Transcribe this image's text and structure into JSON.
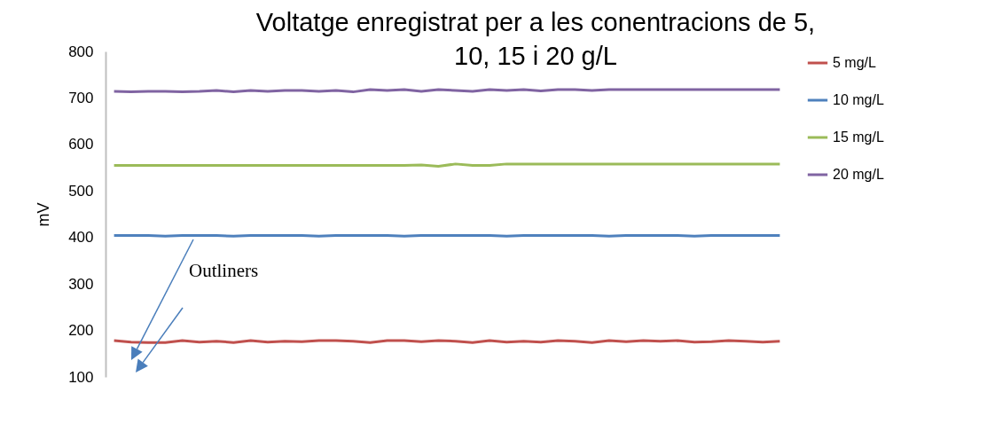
{
  "chart_data": {
    "type": "line",
    "title": "Voltatge enregistrat per a les conentracions de 5, 10, 15 i 20   g/L",
    "ylabel": "mV",
    "categories": [
      null,
      null,
      null,
      null,
      null,
      null,
      null,
      null,
      null,
      null,
      null,
      null,
      null,
      null,
      null,
      null,
      null,
      null,
      null,
      null,
      null,
      null,
      null,
      null,
      null,
      null,
      null,
      null,
      null,
      null,
      null,
      null,
      null,
      null,
      null,
      null,
      null,
      null,
      null,
      null
    ],
    "series": [
      {
        "name": "5 mg/L",
        "color": "#c0504d",
        "values": [
          178,
          175,
          174,
          174,
          178,
          175,
          177,
          174,
          178,
          175,
          177,
          176,
          178,
          178,
          177,
          174,
          178,
          178,
          176,
          178,
          177,
          174,
          178,
          175,
          177,
          175,
          178,
          177,
          174,
          178,
          176,
          178,
          177,
          178,
          175,
          176,
          178,
          177,
          175,
          177
        ]
      },
      {
        "name": "10 mg/L",
        "color": "#4f81bd",
        "values": [
          404,
          404,
          404,
          403,
          404,
          404,
          404,
          403,
          404,
          404,
          404,
          404,
          403,
          404,
          404,
          404,
          404,
          403,
          404,
          404,
          404,
          404,
          404,
          403,
          404,
          404,
          404,
          404,
          404,
          403,
          404,
          404,
          404,
          404,
          403,
          404,
          404,
          404,
          404,
          404
        ]
      },
      {
        "name": "15 mg/L",
        "color": "#9bbb59",
        "values": [
          555,
          555,
          555,
          555,
          555,
          555,
          555,
          555,
          555,
          555,
          555,
          555,
          555,
          555,
          555,
          555,
          555,
          555,
          556,
          553,
          558,
          555,
          555,
          558,
          558,
          558,
          558,
          558,
          558,
          558,
          558,
          558,
          558,
          558,
          558,
          558,
          558,
          558,
          558,
          558
        ]
      },
      {
        "name": "20 mg/L",
        "color": "#8064a2",
        "values": [
          714,
          713,
          714,
          714,
          713,
          714,
          716,
          713,
          716,
          714,
          716,
          716,
          714,
          716,
          713,
          718,
          716,
          718,
          714,
          718,
          716,
          714,
          718,
          716,
          718,
          715,
          718,
          718,
          716,
          718,
          718,
          718,
          718,
          718,
          718,
          718,
          718,
          718,
          718,
          718
        ]
      }
    ],
    "ylim": [
      100,
      800
    ],
    "yticks": [
      100,
      200,
      300,
      400,
      500,
      600,
      700,
      800
    ],
    "grid": false,
    "legend": "right",
    "marker": "none",
    "line_style": "solid",
    "annotations": [
      "Outliners"
    ]
  }
}
